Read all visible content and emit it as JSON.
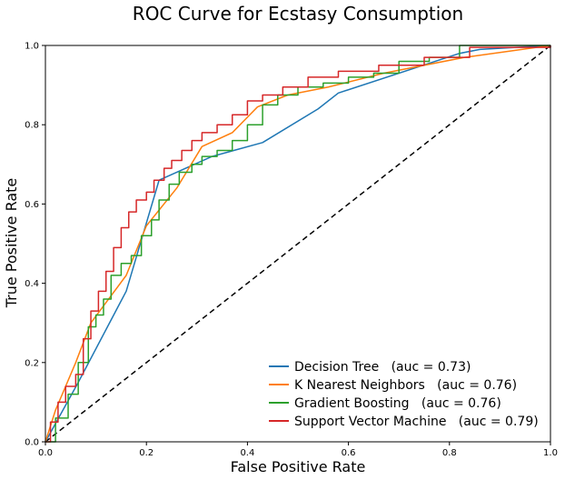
{
  "chart_data": {
    "type": "line",
    "title": "ROC Curve for Ecstasy Consumption",
    "xlabel": "False Positive Rate",
    "ylabel": "True Positive Rate",
    "xlim": [
      0,
      1
    ],
    "ylim": [
      0,
      1
    ],
    "x_ticks": [
      "0.0",
      "0.2",
      "0.4",
      "0.6",
      "0.8",
      "1.0"
    ],
    "y_ticks": [
      "0.0",
      "0.2",
      "0.4",
      "0.6",
      "0.8",
      "1.0"
    ],
    "grid": false,
    "legend_position": "lower-right",
    "reference_line": {
      "style": "dashed",
      "color": "#000000",
      "x": [
        0,
        1
      ],
      "y": [
        0,
        1
      ]
    },
    "series": [
      {
        "name": "Decision Tree   (auc = 0.73)",
        "color": "#1f77b4",
        "step": false,
        "x": [
          0,
          0.065,
          0.16,
          0.225,
          0.33,
          0.43,
          0.54,
          0.58,
          0.82,
          0.86,
          1.0
        ],
        "y": [
          0,
          0.15,
          0.38,
          0.66,
          0.72,
          0.755,
          0.84,
          0.88,
          0.98,
          0.99,
          1.0
        ]
      },
      {
        "name": "K Nearest Neighbors   (auc = 0.76)",
        "color": "#ff7f0e",
        "step": false,
        "x": [
          0,
          0.02,
          0.06,
          0.09,
          0.16,
          0.2,
          0.26,
          0.31,
          0.37,
          0.42,
          0.48,
          0.56,
          0.67,
          0.83,
          1.0
        ],
        "y": [
          0,
          0.08,
          0.2,
          0.3,
          0.42,
          0.545,
          0.64,
          0.745,
          0.78,
          0.845,
          0.875,
          0.895,
          0.93,
          0.97,
          1.0
        ]
      },
      {
        "name": "Gradient Boosting   (auc = 0.76)",
        "color": "#2ca02c",
        "step": true,
        "x": [
          0,
          0.02,
          0.045,
          0.065,
          0.085,
          0.1,
          0.115,
          0.13,
          0.15,
          0.17,
          0.19,
          0.21,
          0.225,
          0.245,
          0.265,
          0.29,
          0.31,
          0.34,
          0.37,
          0.4,
          0.43,
          0.46,
          0.5,
          0.55,
          0.6,
          0.65,
          0.7,
          0.76,
          0.82,
          1.0
        ],
        "y": [
          0,
          0.06,
          0.12,
          0.2,
          0.29,
          0.32,
          0.36,
          0.42,
          0.45,
          0.47,
          0.52,
          0.56,
          0.61,
          0.65,
          0.68,
          0.7,
          0.72,
          0.735,
          0.76,
          0.8,
          0.85,
          0.875,
          0.895,
          0.905,
          0.92,
          0.93,
          0.96,
          0.97,
          1.0,
          1.0
        ]
      },
      {
        "name": "Support Vector Machine   (auc = 0.79)",
        "color": "#d62728",
        "step": true,
        "x": [
          0,
          0.01,
          0.025,
          0.04,
          0.06,
          0.075,
          0.09,
          0.105,
          0.12,
          0.135,
          0.15,
          0.165,
          0.18,
          0.2,
          0.215,
          0.235,
          0.25,
          0.27,
          0.29,
          0.31,
          0.34,
          0.37,
          0.4,
          0.43,
          0.47,
          0.52,
          0.58,
          0.66,
          0.75,
          0.84,
          1.0
        ],
        "y": [
          0,
          0.05,
          0.1,
          0.14,
          0.17,
          0.26,
          0.33,
          0.38,
          0.43,
          0.49,
          0.54,
          0.58,
          0.61,
          0.63,
          0.66,
          0.69,
          0.71,
          0.735,
          0.76,
          0.78,
          0.8,
          0.825,
          0.86,
          0.875,
          0.895,
          0.92,
          0.935,
          0.95,
          0.97,
          0.995,
          1.0
        ]
      }
    ]
  }
}
